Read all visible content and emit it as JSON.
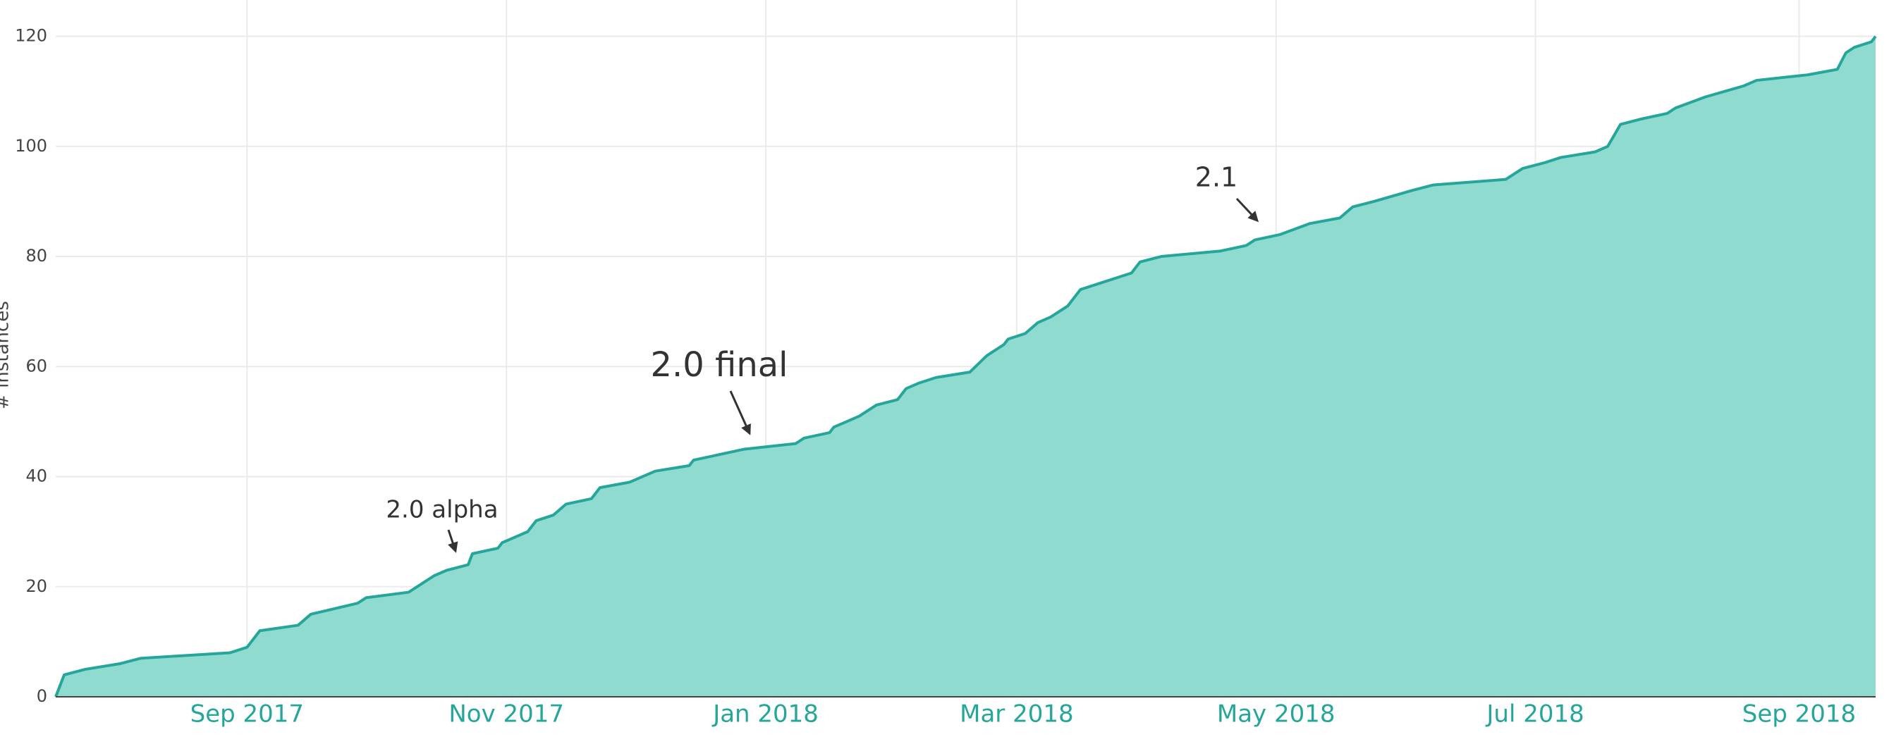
{
  "chart_data": {
    "type": "area",
    "y_label": "# instances",
    "x": [
      "2017-07-18",
      "2017-07-20",
      "2017-07-25",
      "2017-08-02",
      "2017-08-07",
      "2017-08-28",
      "2017-09-01",
      "2017-09-04",
      "2017-09-13",
      "2017-09-16",
      "2017-09-27",
      "2017-09-29",
      "2017-10-09",
      "2017-10-13",
      "2017-10-15",
      "2017-10-18",
      "2017-10-23",
      "2017-10-24",
      "2017-10-30",
      "2017-10-31",
      "2017-11-06",
      "2017-11-08",
      "2017-11-12",
      "2017-11-15",
      "2017-11-21",
      "2017-11-23",
      "2017-11-30",
      "2017-12-06",
      "2017-12-14",
      "2017-12-15",
      "2017-12-27",
      "2018-01-08",
      "2018-01-10",
      "2018-01-16",
      "2018-01-17",
      "2018-01-20",
      "2018-01-23",
      "2018-01-27",
      "2018-02-01",
      "2018-02-03",
      "2018-02-06",
      "2018-02-10",
      "2018-02-18",
      "2018-02-22",
      "2018-02-26",
      "2018-02-27",
      "2018-03-03",
      "2018-03-06",
      "2018-03-09",
      "2018-03-13",
      "2018-03-16",
      "2018-03-28",
      "2018-03-30",
      "2018-04-04",
      "2018-04-18",
      "2018-04-24",
      "2018-04-26",
      "2018-05-02",
      "2018-05-09",
      "2018-05-16",
      "2018-05-19",
      "2018-05-24",
      "2018-06-02",
      "2018-06-07",
      "2018-06-24",
      "2018-06-28",
      "2018-07-03",
      "2018-07-07",
      "2018-07-15",
      "2018-07-18",
      "2018-07-21",
      "2018-07-26",
      "2018-08-01",
      "2018-08-03",
      "2018-08-10",
      "2018-08-19",
      "2018-08-22",
      "2018-09-03",
      "2018-09-10",
      "2018-09-12",
      "2018-09-14",
      "2018-09-18",
      "2018-09-19"
    ],
    "values": [
      0,
      4,
      5,
      6,
      7,
      8,
      9,
      12,
      13,
      15,
      17,
      18,
      19,
      21,
      22,
      23,
      24,
      26,
      27,
      28,
      30,
      32,
      33,
      35,
      36,
      38,
      39,
      41,
      42,
      43,
      45,
      46,
      47,
      48,
      49,
      50,
      51,
      53,
      54,
      56,
      57,
      58,
      59,
      62,
      64,
      65,
      66,
      68,
      69,
      71,
      74,
      77,
      79,
      80,
      81,
      82,
      83,
      84,
      86,
      87,
      89,
      90,
      92,
      93,
      94,
      96,
      97,
      98,
      99,
      100,
      104,
      105,
      106,
      107,
      109,
      111,
      112,
      113,
      114,
      117,
      118,
      119,
      120
    ],
    "color": "#26a69a",
    "fill_color": "#8fdbd0",
    "xlim": [
      "2017-07-18",
      "2018-09-19"
    ],
    "xticks": [
      {
        "value": "2017-09-01",
        "label": "Sep 2017"
      },
      {
        "value": "2017-11-01",
        "label": "Nov 2017"
      },
      {
        "value": "2018-01-01",
        "label": "Jan 2018"
      },
      {
        "value": "2018-03-01",
        "label": "Mar 2018"
      },
      {
        "value": "2018-05-01",
        "label": "May 2018"
      },
      {
        "value": "2018-07-01",
        "label": "Jul 2018"
      },
      {
        "value": "2018-09-01",
        "label": "Sep 2018"
      }
    ],
    "ylim": [
      0,
      126.6
    ],
    "yticks": [
      0,
      20,
      40,
      60,
      80,
      100,
      120
    ],
    "grid": true,
    "annotations": [
      {
        "text": "2.0 alpha"
      },
      {
        "text": "2.0 final"
      },
      {
        "text": "2.1"
      }
    ]
  }
}
